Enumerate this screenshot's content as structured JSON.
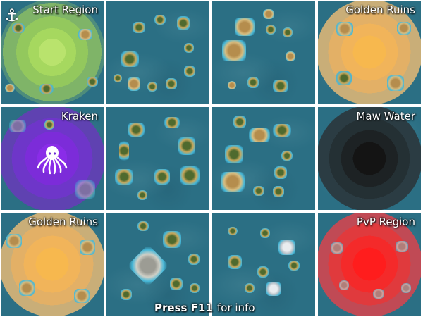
{
  "tiles": {
    "start_region": {
      "label": "Start Region",
      "icon": "anchor-icon"
    },
    "golden_ruins_top": {
      "label": "Golden Ruins"
    },
    "kraken": {
      "label": "Kraken",
      "icon": "octopus-icon"
    },
    "maw_water": {
      "label": "Maw Water"
    },
    "golden_ruins_bottom": {
      "label": "Golden Ruins"
    },
    "pvp_region": {
      "label": "PvP Region"
    }
  },
  "footer": {
    "press_text": "Press F11",
    "info_text": "for info"
  },
  "colors": {
    "ocean": "#2b6f84",
    "start_zone": "#9ad15a",
    "golden_zone": "#f2b04a",
    "kraken_zone": "#6a2bd6",
    "maw_zone": "#1a1a1a",
    "pvp_zone": "#ff2020"
  }
}
